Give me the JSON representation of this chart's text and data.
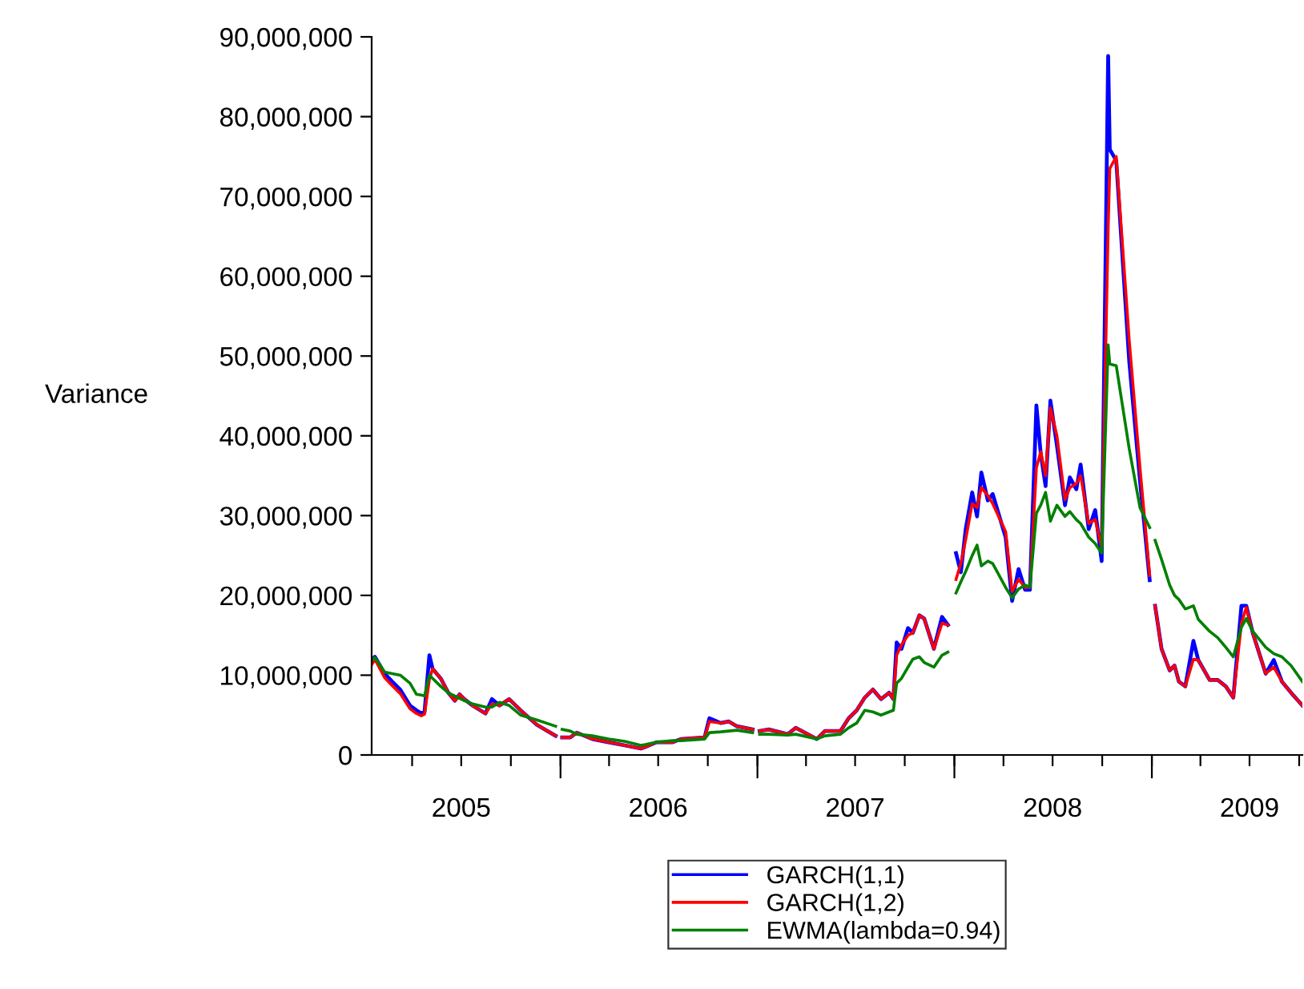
{
  "chart_data": {
    "type": "line",
    "ylabel": "Variance",
    "x": [
      "2005-01-16",
      "2005-01-22",
      "2005-02-09",
      "2005-02-23",
      "2005-03-10",
      "2005-03-28",
      "2005-04-09",
      "2005-04-18",
      "2005-04-24",
      "2005-05-03",
      "2005-05-09",
      "2005-05-24",
      "2005-06-07",
      "2005-06-19",
      "2005-06-28",
      "2005-07-07",
      "2005-07-22",
      "2005-08-15",
      "2005-08-27",
      "2005-09-10",
      "2005-09-28",
      "2005-10-19",
      "2005-11-18",
      "2005-12-23",
      "2005-12-30",
      "2006-01-04",
      "2006-01-19",
      "2006-01-31",
      "2006-03-01",
      "2006-03-31",
      "2006-04-30",
      "2006-05-30",
      "2006-06-07",
      "2006-06-28",
      "2006-07-28",
      "2006-08-12",
      "2006-09-25",
      "2006-10-04",
      "2006-10-25",
      "2006-11-09",
      "2006-11-24",
      "2006-12-23",
      "2006-12-30",
      "2007-01-05",
      "2007-01-22",
      "2007-02-26",
      "2007-03-13",
      "2007-04-21",
      "2007-05-06",
      "2007-06-04",
      "2007-06-19",
      "2007-07-04",
      "2007-07-19",
      "2007-08-03",
      "2007-08-18",
      "2007-09-02",
      "2007-09-10",
      "2007-09-16",
      "2007-09-25",
      "2007-10-07",
      "2007-10-16",
      "2007-10-28",
      "2007-11-06",
      "2007-11-24",
      "2007-12-09",
      "2007-12-20",
      "2007-12-31",
      "2008-01-04",
      "2008-01-13",
      "2008-01-22",
      "2008-02-03",
      "2008-02-12",
      "2008-02-20",
      "2008-03-03",
      "2008-03-12",
      "2008-04-05",
      "2008-04-17",
      "2008-04-29",
      "2008-05-11",
      "2008-05-20",
      "2008-06-01",
      "2008-06-09",
      "2008-06-18",
      "2008-06-27",
      "2008-07-09",
      "2008-07-24",
      "2008-08-02",
      "2008-08-14",
      "2008-08-22",
      "2008-09-06",
      "2008-09-18",
      "2008-09-30",
      "2008-10-12",
      "2008-10-15",
      "2008-10-27",
      "2008-11-20",
      "2008-12-10",
      "2008-12-28",
      "2008-12-31",
      "2009-01-07",
      "2009-01-19",
      "2009-02-03",
      "2009-02-12",
      "2009-02-20",
      "2009-03-04",
      "2009-03-19",
      "2009-03-28",
      "2009-04-18",
      "2009-05-03",
      "2009-05-18",
      "2009-06-01",
      "2009-06-16",
      "2009-06-25",
      "2009-07-07",
      "2009-07-31",
      "2009-08-15",
      "2009-08-30",
      "2009-09-16",
      "2009-10-07"
    ],
    "series": [
      {
        "name": "GARCH(1,1)",
        "color": "#0000ff",
        "values": [
          11900000,
          12300000,
          10200000,
          9200000,
          8200000,
          6200000,
          5600000,
          5200000,
          5400000,
          12500000,
          10800000,
          9600000,
          7800000,
          6800000,
          7600000,
          7000000,
          6200000,
          5200000,
          7000000,
          6200000,
          7000000,
          5600000,
          3800000,
          2400000,
          null,
          2200000,
          2200000,
          2800000,
          2000000,
          1600000,
          1200000,
          800000,
          1000000,
          1600000,
          1600000,
          2000000,
          2200000,
          4600000,
          4000000,
          4200000,
          3600000,
          3200000,
          null,
          3000000,
          3200000,
          2600000,
          3400000,
          2000000,
          3000000,
          3000000,
          4600000,
          5600000,
          7200000,
          8200000,
          7000000,
          7800000,
          7000000,
          14100000,
          13300000,
          15900000,
          15300000,
          17500000,
          17100000,
          13300000,
          17300000,
          16300000,
          null,
          25300000,
          22900000,
          28300000,
          32900000,
          29900000,
          35400000,
          31900000,
          32700000,
          27300000,
          19300000,
          23300000,
          20700000,
          20700000,
          43800000,
          37800000,
          33700000,
          44400000,
          38800000,
          31300000,
          34800000,
          33300000,
          36400000,
          28300000,
          30700000,
          24300000,
          87600000,
          75900000,
          74500000,
          49400000,
          34400000,
          21900000,
          null,
          18700000,
          13300000,
          10600000,
          11200000,
          9200000,
          8600000,
          14300000,
          11900000,
          9400000,
          9400000,
          8600000,
          7200000,
          18700000,
          18700000,
          15300000,
          10200000,
          11900000,
          9200000,
          7800000,
          6200000
        ]
      },
      {
        "name": "GARCH(1,2)",
        "color": "#ff0000",
        "values": [
          11300000,
          12000000,
          9700000,
          8700000,
          7700000,
          5800000,
          5200000,
          4900000,
          5100000,
          9500000,
          10800000,
          9600000,
          7800000,
          6800000,
          7600000,
          7000000,
          6200000,
          5200000,
          6400000,
          6200000,
          7000000,
          5600000,
          3800000,
          2400000,
          null,
          2200000,
          2200000,
          2800000,
          2000000,
          1600000,
          1200000,
          800000,
          1000000,
          1600000,
          1600000,
          2000000,
          2200000,
          4200000,
          4000000,
          4200000,
          3600000,
          3200000,
          null,
          3000000,
          3200000,
          2600000,
          3400000,
          2000000,
          3000000,
          3000000,
          4600000,
          5600000,
          7200000,
          8200000,
          7000000,
          7800000,
          7000000,
          12500000,
          13800000,
          15000000,
          15300000,
          17500000,
          17100000,
          13300000,
          16500000,
          16300000,
          null,
          22000000,
          24000000,
          27000000,
          31500000,
          31000000,
          33500000,
          32500000,
          31500000,
          28000000,
          20500000,
          22000000,
          21000000,
          21000000,
          36000000,
          38000000,
          35000000,
          43500000,
          40000000,
          32000000,
          33500000,
          34000000,
          35000000,
          29000000,
          29500000,
          26000000,
          66000000,
          73500000,
          75000000,
          52000000,
          36000000,
          22500000,
          null,
          18700000,
          13300000,
          10600000,
          11200000,
          9200000,
          8600000,
          12000000,
          11900000,
          9400000,
          9400000,
          8600000,
          7200000,
          16500000,
          18500000,
          15300000,
          10200000,
          11000000,
          9200000,
          7800000,
          6200000
        ]
      },
      {
        "name": "EWMA(lambda=0.94)",
        "color": "#008000",
        "values": [
          11900000,
          12200000,
          10400000,
          10200000,
          10000000,
          9000000,
          7600000,
          7500000,
          7400000,
          10000000,
          9600000,
          8600000,
          7800000,
          7400000,
          7100000,
          6800000,
          6400000,
          6000000,
          6000000,
          6600000,
          6200000,
          5000000,
          4400000,
          3600000,
          null,
          3200000,
          3000000,
          2600000,
          2400000,
          2000000,
          1700000,
          1200000,
          1300000,
          1600000,
          1800000,
          1800000,
          2000000,
          2800000,
          2900000,
          3000000,
          3100000,
          2800000,
          null,
          2600000,
          2600000,
          2500000,
          2600000,
          2000000,
          2400000,
          2600000,
          3400000,
          4000000,
          5600000,
          5400000,
          5000000,
          5400000,
          5600000,
          9000000,
          9600000,
          11000000,
          12000000,
          12300000,
          11600000,
          11000000,
          12500000,
          12900000,
          null,
          20300000,
          21700000,
          23000000,
          25000000,
          26300000,
          23700000,
          24300000,
          24000000,
          21000000,
          19700000,
          20800000,
          21300000,
          21000000,
          30300000,
          31300000,
          32900000,
          29300000,
          31300000,
          29900000,
          30500000,
          29500000,
          29000000,
          27300000,
          26500000,
          25300000,
          51400000,
          49000000,
          48800000,
          38400000,
          31000000,
          28500000,
          null,
          26900000,
          24500000,
          21300000,
          20000000,
          19500000,
          18300000,
          18700000,
          17000000,
          15500000,
          14700000,
          13500000,
          12300000,
          16000000,
          17100000,
          15500000,
          13500000,
          12700000,
          12300000,
          11200000,
          9200000
        ]
      }
    ],
    "xlim": [
      "2005-01-16",
      "2009-10-07"
    ],
    "xticks": [
      {
        "value": "2005-04-01",
        "label": null
      },
      {
        "value": "2005-07-01",
        "label": "2005"
      },
      {
        "value": "2005-10-01",
        "label": null
      },
      {
        "value": "2006-01-01",
        "label": null
      },
      {
        "value": "2006-04-01",
        "label": null
      },
      {
        "value": "2006-07-01",
        "label": "2006"
      },
      {
        "value": "2006-10-01",
        "label": null
      },
      {
        "value": "2007-01-01",
        "label": null
      },
      {
        "value": "2007-04-01",
        "label": null
      },
      {
        "value": "2007-07-01",
        "label": "2007"
      },
      {
        "value": "2007-10-01",
        "label": null
      },
      {
        "value": "2008-01-01",
        "label": null
      },
      {
        "value": "2008-04-01",
        "label": null
      },
      {
        "value": "2008-07-01",
        "label": "2008"
      },
      {
        "value": "2008-10-01",
        "label": null
      },
      {
        "value": "2009-01-01",
        "label": null
      },
      {
        "value": "2009-04-01",
        "label": null
      },
      {
        "value": "2009-07-01",
        "label": "2009"
      },
      {
        "value": "2009-10-01",
        "label": null
      }
    ],
    "ylim": [
      0,
      90000000
    ],
    "yticks": [
      {
        "value": 0,
        "label": "0"
      },
      {
        "value": 10000000,
        "label": "10,000,000"
      },
      {
        "value": 20000000,
        "label": "20,000,000"
      },
      {
        "value": 30000000,
        "label": "30,000,000"
      },
      {
        "value": 40000000,
        "label": "40,000,000"
      },
      {
        "value": 50000000,
        "label": "50,000,000"
      },
      {
        "value": 60000000,
        "label": "60,000,000"
      },
      {
        "value": 70000000,
        "label": "70,000,000"
      },
      {
        "value": 80000000,
        "label": "80,000,000"
      },
      {
        "value": 90000000,
        "label": "90,000,000"
      }
    ],
    "grid": false,
    "legend": "bottom",
    "marker": "none",
    "line_style": "solid"
  }
}
